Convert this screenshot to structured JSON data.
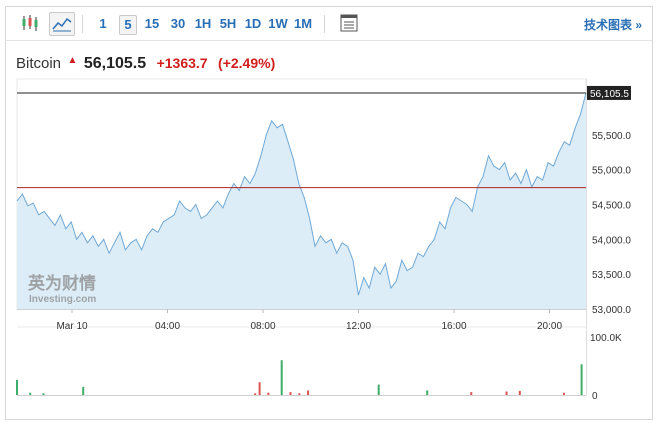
{
  "toolbar": {
    "icons": [
      "candlestick-icon",
      "area-chart-icon",
      "settings-panel-icon"
    ],
    "intervals": [
      "1",
      "5",
      "15",
      "30",
      "1H",
      "5H",
      "1D",
      "1W",
      "1M"
    ],
    "active_interval": "5",
    "tech_link": "技术图表 »"
  },
  "quote": {
    "name": "Bitcoin",
    "price": "56,105.5",
    "change": "+1363.7",
    "change_pct": "(+2.49%)"
  },
  "watermark": {
    "cn": "英为财情",
    "en": "Investing.com"
  },
  "colors": {
    "line": "#6fa8d6",
    "area": "#dcedf7",
    "prev_close": "#b22222",
    "up_volume": "#3fae6b",
    "down_volume": "#d9534f",
    "price_tag_bg": "#222222"
  },
  "chart_data": {
    "type": "area",
    "current_price_label": "56,105.5",
    "previous_close": 54742,
    "ylim": [
      53000,
      56300
    ],
    "y_ticks": [
      "55,500.0",
      "55,000.0",
      "54,500.0",
      "54,000.0",
      "53,500.0",
      "53,000.0"
    ],
    "x_ticks": [
      "Mar 10",
      "04:00",
      "08:00",
      "12:00",
      "16:00",
      "20:00"
    ],
    "volume_ticks": [
      "100.0K",
      "0"
    ],
    "series": [
      {
        "values": [
          54550,
          54650,
          54480,
          54520,
          54350,
          54400,
          54300,
          54200,
          54350,
          54150,
          54250,
          54000,
          54100,
          53950,
          54050,
          53900,
          54000,
          53800,
          53950,
          54100,
          53850,
          53950,
          54000,
          53850,
          54050,
          54150,
          54100,
          54250,
          54300,
          54350,
          54550,
          54450,
          54400,
          54500,
          54300,
          54350,
          54450,
          54550,
          54450,
          54650,
          54800,
          54700,
          54900,
          54800,
          54950,
          55200,
          55500,
          55700,
          55600,
          55650,
          55400,
          55150,
          54800,
          54600,
          54300,
          53900,
          54050,
          53950,
          54000,
          53800,
          53950,
          53900,
          53700,
          53200,
          53450,
          53300,
          53600,
          53500,
          53650,
          53300,
          53400,
          53700,
          53550,
          53600,
          53800,
          53750,
          53900,
          54000,
          54250,
          54150,
          54450,
          54600,
          54550,
          54500,
          54400,
          54750,
          54900,
          55200,
          55050,
          55000,
          55100,
          54850,
          54950,
          54800,
          55000,
          54750,
          54900,
          54850,
          55100,
          55050,
          55250,
          55400,
          55350,
          55600,
          55800,
          56100
        ]
      }
    ],
    "volume": [
      {
        "i": 0,
        "v": 26,
        "d": "up"
      },
      {
        "i": 3,
        "v": 4,
        "d": "up"
      },
      {
        "i": 6,
        "v": 3,
        "d": "up"
      },
      {
        "i": 15,
        "v": 14,
        "d": "up"
      },
      {
        "i": 54,
        "v": 3,
        "d": "down"
      },
      {
        "i": 55,
        "v": 22,
        "d": "down"
      },
      {
        "i": 57,
        "v": 4,
        "d": "down"
      },
      {
        "i": 60,
        "v": 60,
        "d": "up"
      },
      {
        "i": 62,
        "v": 5,
        "d": "down"
      },
      {
        "i": 64,
        "v": 3,
        "d": "down"
      },
      {
        "i": 66,
        "v": 8,
        "d": "down"
      },
      {
        "i": 82,
        "v": 18,
        "d": "up"
      },
      {
        "i": 93,
        "v": 8,
        "d": "up"
      },
      {
        "i": 103,
        "v": 5,
        "d": "down"
      },
      {
        "i": 111,
        "v": 6,
        "d": "down"
      },
      {
        "i": 114,
        "v": 7,
        "d": "down"
      },
      {
        "i": 124,
        "v": 4,
        "d": "down"
      },
      {
        "i": 128,
        "v": 53,
        "d": "up"
      }
    ]
  }
}
